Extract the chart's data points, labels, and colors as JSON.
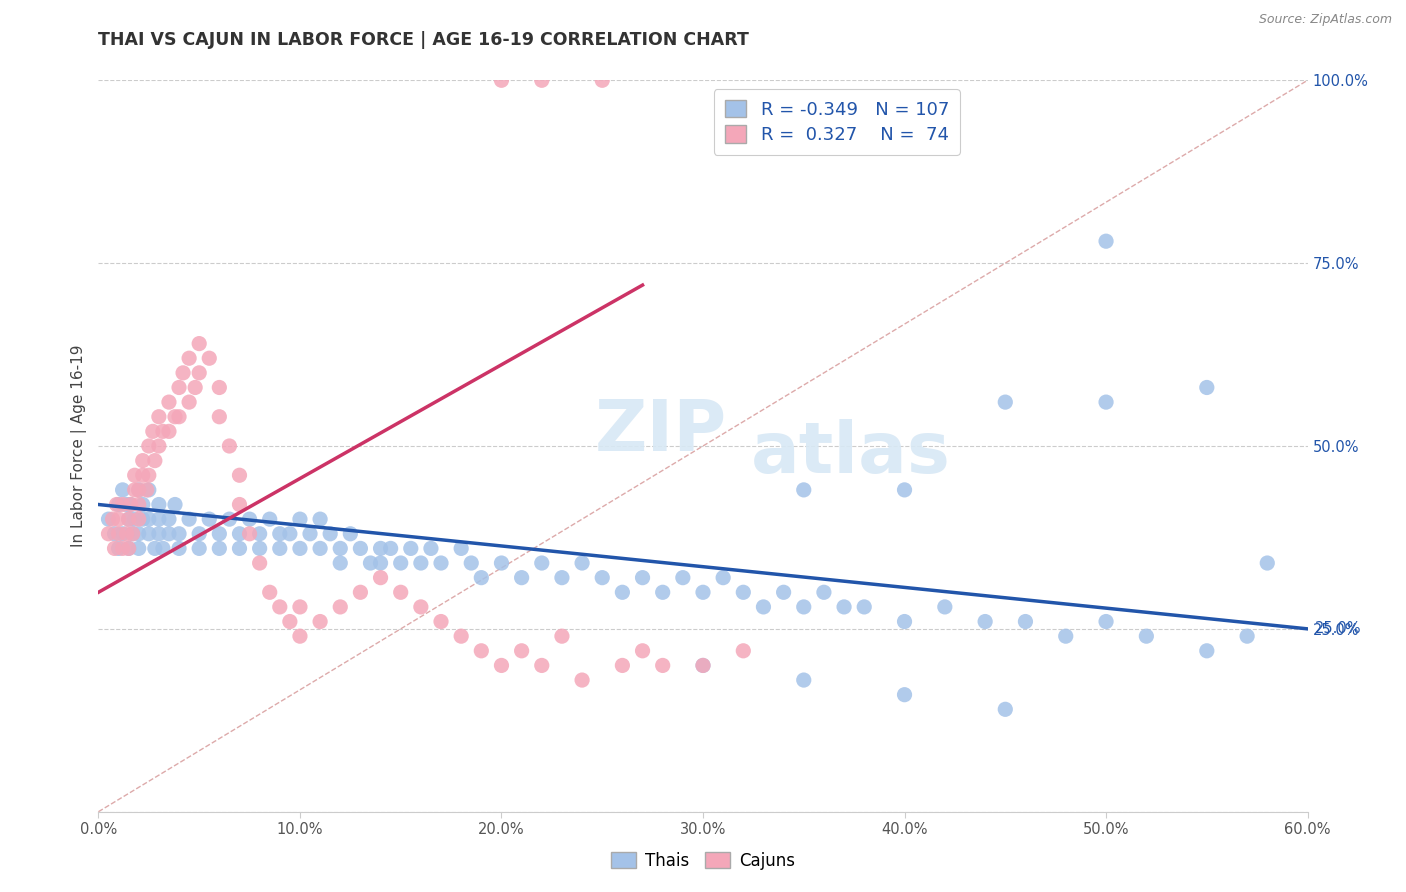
{
  "title": "THAI VS CAJUN IN LABOR FORCE | AGE 16-19 CORRELATION CHART",
  "source": "Source: ZipAtlas.com",
  "ylabel": "In Labor Force | Age 16-19",
  "xlim": [
    0.0,
    0.6
  ],
  "ylim": [
    0.0,
    1.0
  ],
  "blue_color": "#a4c2e8",
  "pink_color": "#f4a7b9",
  "blue_line_color": "#2255aa",
  "pink_line_color": "#cc3366",
  "dashed_line_color": "#ddaaaa",
  "legend_R_blue": "-0.349",
  "legend_N_blue": "107",
  "legend_R_pink": "0.327",
  "legend_N_pink": "74",
  "watermark_zip": "ZIP",
  "watermark_atlas": "atlas",
  "blue_line_x": [
    0.0,
    0.6
  ],
  "blue_line_y": [
    0.42,
    0.25
  ],
  "pink_line_x": [
    0.0,
    0.27
  ],
  "pink_line_y": [
    0.3,
    0.72
  ],
  "diagonal_line_x": [
    0.0,
    0.6
  ],
  "diagonal_line_y": [
    0.0,
    1.0
  ],
  "blue_scatter_x": [
    0.005,
    0.008,
    0.01,
    0.01,
    0.012,
    0.012,
    0.014,
    0.015,
    0.015,
    0.016,
    0.017,
    0.018,
    0.02,
    0.02,
    0.02,
    0.022,
    0.022,
    0.025,
    0.025,
    0.025,
    0.028,
    0.03,
    0.03,
    0.03,
    0.032,
    0.035,
    0.035,
    0.038,
    0.04,
    0.04,
    0.045,
    0.05,
    0.05,
    0.055,
    0.06,
    0.06,
    0.065,
    0.07,
    0.07,
    0.075,
    0.08,
    0.08,
    0.085,
    0.09,
    0.09,
    0.095,
    0.1,
    0.1,
    0.105,
    0.11,
    0.11,
    0.115,
    0.12,
    0.12,
    0.125,
    0.13,
    0.135,
    0.14,
    0.14,
    0.145,
    0.15,
    0.155,
    0.16,
    0.165,
    0.17,
    0.18,
    0.185,
    0.19,
    0.2,
    0.21,
    0.22,
    0.23,
    0.24,
    0.25,
    0.26,
    0.27,
    0.28,
    0.29,
    0.3,
    0.31,
    0.32,
    0.33,
    0.34,
    0.35,
    0.36,
    0.37,
    0.38,
    0.4,
    0.42,
    0.44,
    0.46,
    0.48,
    0.5,
    0.52,
    0.55,
    0.57,
    0.35,
    0.4,
    0.45,
    0.5,
    0.55,
    0.58,
    0.3,
    0.35,
    0.4,
    0.45,
    0.5
  ],
  "blue_scatter_y": [
    0.4,
    0.38,
    0.42,
    0.36,
    0.44,
    0.38,
    0.42,
    0.4,
    0.36,
    0.42,
    0.38,
    0.4,
    0.44,
    0.38,
    0.36,
    0.4,
    0.42,
    0.38,
    0.4,
    0.44,
    0.36,
    0.4,
    0.38,
    0.42,
    0.36,
    0.4,
    0.38,
    0.42,
    0.38,
    0.36,
    0.4,
    0.38,
    0.36,
    0.4,
    0.38,
    0.36,
    0.4,
    0.38,
    0.36,
    0.4,
    0.38,
    0.36,
    0.4,
    0.38,
    0.36,
    0.38,
    0.4,
    0.36,
    0.38,
    0.4,
    0.36,
    0.38,
    0.36,
    0.34,
    0.38,
    0.36,
    0.34,
    0.36,
    0.34,
    0.36,
    0.34,
    0.36,
    0.34,
    0.36,
    0.34,
    0.36,
    0.34,
    0.32,
    0.34,
    0.32,
    0.34,
    0.32,
    0.34,
    0.32,
    0.3,
    0.32,
    0.3,
    0.32,
    0.3,
    0.32,
    0.3,
    0.28,
    0.3,
    0.28,
    0.3,
    0.28,
    0.28,
    0.26,
    0.28,
    0.26,
    0.26,
    0.24,
    0.26,
    0.24,
    0.22,
    0.24,
    0.44,
    0.44,
    0.56,
    0.56,
    0.58,
    0.34,
    0.2,
    0.18,
    0.16,
    0.14,
    0.78
  ],
  "pink_scatter_x": [
    0.005,
    0.007,
    0.008,
    0.009,
    0.01,
    0.01,
    0.012,
    0.012,
    0.014,
    0.015,
    0.015,
    0.016,
    0.017,
    0.018,
    0.018,
    0.02,
    0.02,
    0.02,
    0.022,
    0.022,
    0.024,
    0.025,
    0.025,
    0.027,
    0.028,
    0.03,
    0.03,
    0.032,
    0.035,
    0.035,
    0.038,
    0.04,
    0.04,
    0.042,
    0.045,
    0.045,
    0.048,
    0.05,
    0.05,
    0.055,
    0.06,
    0.06,
    0.065,
    0.07,
    0.07,
    0.075,
    0.08,
    0.085,
    0.09,
    0.095,
    0.1,
    0.1,
    0.11,
    0.12,
    0.13,
    0.14,
    0.15,
    0.16,
    0.17,
    0.18,
    0.19,
    0.2,
    0.21,
    0.22,
    0.23,
    0.27,
    0.28,
    0.3,
    0.32,
    0.24,
    0.26,
    0.2,
    0.22,
    0.25
  ],
  "pink_scatter_y": [
    0.38,
    0.4,
    0.36,
    0.42,
    0.38,
    0.4,
    0.36,
    0.42,
    0.38,
    0.4,
    0.36,
    0.42,
    0.38,
    0.44,
    0.46,
    0.42,
    0.44,
    0.4,
    0.46,
    0.48,
    0.44,
    0.5,
    0.46,
    0.52,
    0.48,
    0.54,
    0.5,
    0.52,
    0.56,
    0.52,
    0.54,
    0.58,
    0.54,
    0.6,
    0.56,
    0.62,
    0.58,
    0.64,
    0.6,
    0.62,
    0.58,
    0.54,
    0.5,
    0.46,
    0.42,
    0.38,
    0.34,
    0.3,
    0.28,
    0.26,
    0.24,
    0.28,
    0.26,
    0.28,
    0.3,
    0.32,
    0.3,
    0.28,
    0.26,
    0.24,
    0.22,
    0.2,
    0.22,
    0.2,
    0.24,
    0.22,
    0.2,
    0.2,
    0.22,
    0.18,
    0.2,
    1.0,
    1.0,
    1.0
  ]
}
